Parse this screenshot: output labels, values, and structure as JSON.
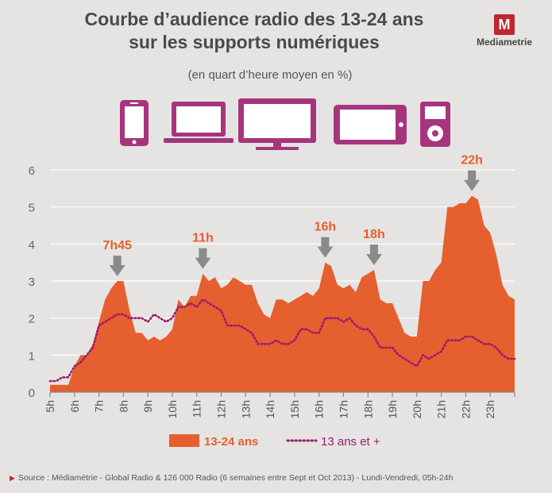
{
  "header": {
    "title_line1": "Courbe d’audience radio des 13-24 ans",
    "title_line2": "sur les supports numériques",
    "subtitle": "(en quart d’heure moyen en %)",
    "logo_text": "Mediametrie",
    "logo_letter": "M"
  },
  "devices": [
    "smartphone-icon",
    "laptop-icon",
    "tv-icon",
    "tablet-icon",
    "mp3-player-icon"
  ],
  "colors": {
    "primary": "#e55f2f",
    "secondary": "#9c1b6d",
    "device": "#a6357e",
    "arrow": "#8a8a8a",
    "accent": "#c0272d"
  },
  "source": "Source : Médiamétrie - Global Radio & 126 000 Radio (6 semaines entre Sept et Oct 2013) - Lundi-Vendredi, 05h-24h",
  "chart_data": {
    "type": "area",
    "ylim": [
      0,
      6
    ],
    "yticks": [
      0,
      1,
      2,
      3,
      4,
      5,
      6
    ],
    "xlim": [
      5,
      24
    ],
    "x_ticks": [
      "5h",
      "6h",
      "7h",
      "8h",
      "9h",
      "10h",
      "11h",
      "12h",
      "13h",
      "14h",
      "15h",
      "16h",
      "17h",
      "18h",
      "19h",
      "20h",
      "21h",
      "22h",
      "23h"
    ],
    "grid": true,
    "legend_position": "bottom",
    "series": [
      {
        "name": "13-24 ans",
        "style": "area",
        "points": [
          [
            5.0,
            0.2
          ],
          [
            5.25,
            0.2
          ],
          [
            5.5,
            0.2
          ],
          [
            5.75,
            0.2
          ],
          [
            6.0,
            0.7
          ],
          [
            6.25,
            1.0
          ],
          [
            6.5,
            1.0
          ],
          [
            6.75,
            1.3
          ],
          [
            7.0,
            1.9
          ],
          [
            7.25,
            2.5
          ],
          [
            7.5,
            2.8
          ],
          [
            7.75,
            3.0
          ],
          [
            8.0,
            3.0
          ],
          [
            8.25,
            2.2
          ],
          [
            8.5,
            1.6
          ],
          [
            8.75,
            1.6
          ],
          [
            9.0,
            1.4
          ],
          [
            9.25,
            1.5
          ],
          [
            9.5,
            1.4
          ],
          [
            9.75,
            1.5
          ],
          [
            10.0,
            1.7
          ],
          [
            10.25,
            2.5
          ],
          [
            10.5,
            2.3
          ],
          [
            10.75,
            2.6
          ],
          [
            11.0,
            2.6
          ],
          [
            11.25,
            3.2
          ],
          [
            11.5,
            3.0
          ],
          [
            11.75,
            3.1
          ],
          [
            12.0,
            2.8
          ],
          [
            12.25,
            2.9
          ],
          [
            12.5,
            3.1
          ],
          [
            12.75,
            3.0
          ],
          [
            13.0,
            2.9
          ],
          [
            13.25,
            2.9
          ],
          [
            13.5,
            2.4
          ],
          [
            13.75,
            2.1
          ],
          [
            14.0,
            2.0
          ],
          [
            14.25,
            2.5
          ],
          [
            14.5,
            2.5
          ],
          [
            14.75,
            2.4
          ],
          [
            15.0,
            2.5
          ],
          [
            15.25,
            2.6
          ],
          [
            15.5,
            2.7
          ],
          [
            15.75,
            2.6
          ],
          [
            16.0,
            2.8
          ],
          [
            16.25,
            3.5
          ],
          [
            16.5,
            3.4
          ],
          [
            16.75,
            2.9
          ],
          [
            17.0,
            2.8
          ],
          [
            17.25,
            2.9
          ],
          [
            17.5,
            2.7
          ],
          [
            17.75,
            3.1
          ],
          [
            18.0,
            3.2
          ],
          [
            18.25,
            3.3
          ],
          [
            18.5,
            2.5
          ],
          [
            18.75,
            2.4
          ],
          [
            19.0,
            2.4
          ],
          [
            19.25,
            2.0
          ],
          [
            19.5,
            1.6
          ],
          [
            19.75,
            1.5
          ],
          [
            20.0,
            1.5
          ],
          [
            20.25,
            3.0
          ],
          [
            20.5,
            3.0
          ],
          [
            20.75,
            3.3
          ],
          [
            21.0,
            3.5
          ],
          [
            21.25,
            5.0
          ],
          [
            21.5,
            5.0
          ],
          [
            21.75,
            5.1
          ],
          [
            22.0,
            5.1
          ],
          [
            22.25,
            5.3
          ],
          [
            22.5,
            5.2
          ],
          [
            22.75,
            4.5
          ],
          [
            23.0,
            4.3
          ],
          [
            23.25,
            3.7
          ],
          [
            23.5,
            2.9
          ],
          [
            23.75,
            2.6
          ],
          [
            24.0,
            2.5
          ]
        ]
      },
      {
        "name": "13 ans et +",
        "style": "dotted-line",
        "points": [
          [
            5.0,
            0.3
          ],
          [
            5.25,
            0.3
          ],
          [
            5.5,
            0.4
          ],
          [
            5.75,
            0.4
          ],
          [
            6.0,
            0.7
          ],
          [
            6.25,
            0.8
          ],
          [
            6.5,
            1.0
          ],
          [
            6.75,
            1.2
          ],
          [
            7.0,
            1.8
          ],
          [
            7.25,
            1.9
          ],
          [
            7.5,
            2.0
          ],
          [
            7.75,
            2.1
          ],
          [
            8.0,
            2.1
          ],
          [
            8.25,
            2.0
          ],
          [
            8.5,
            2.0
          ],
          [
            8.75,
            2.0
          ],
          [
            9.0,
            1.9
          ],
          [
            9.25,
            2.1
          ],
          [
            9.5,
            2.0
          ],
          [
            9.75,
            1.9
          ],
          [
            10.0,
            2.0
          ],
          [
            10.25,
            2.3
          ],
          [
            10.5,
            2.3
          ],
          [
            10.75,
            2.4
          ],
          [
            11.0,
            2.3
          ],
          [
            11.25,
            2.5
          ],
          [
            11.5,
            2.4
          ],
          [
            11.75,
            2.3
          ],
          [
            12.0,
            2.2
          ],
          [
            12.25,
            1.8
          ],
          [
            12.5,
            1.8
          ],
          [
            12.75,
            1.8
          ],
          [
            13.0,
            1.7
          ],
          [
            13.25,
            1.6
          ],
          [
            13.5,
            1.3
          ],
          [
            13.75,
            1.3
          ],
          [
            14.0,
            1.3
          ],
          [
            14.25,
            1.4
          ],
          [
            14.5,
            1.3
          ],
          [
            14.75,
            1.3
          ],
          [
            15.0,
            1.4
          ],
          [
            15.25,
            1.7
          ],
          [
            15.5,
            1.7
          ],
          [
            15.75,
            1.6
          ],
          [
            16.0,
            1.6
          ],
          [
            16.25,
            2.0
          ],
          [
            16.5,
            2.0
          ],
          [
            16.75,
            2.0
          ],
          [
            17.0,
            1.9
          ],
          [
            17.25,
            2.0
          ],
          [
            17.5,
            1.8
          ],
          [
            17.75,
            1.7
          ],
          [
            18.0,
            1.7
          ],
          [
            18.25,
            1.5
          ],
          [
            18.5,
            1.2
          ],
          [
            18.75,
            1.2
          ],
          [
            19.0,
            1.2
          ],
          [
            19.25,
            1.0
          ],
          [
            19.5,
            0.9
          ],
          [
            19.75,
            0.8
          ],
          [
            20.0,
            0.7
          ],
          [
            20.25,
            1.0
          ],
          [
            20.5,
            0.9
          ],
          [
            20.75,
            1.0
          ],
          [
            21.0,
            1.1
          ],
          [
            21.25,
            1.4
          ],
          [
            21.5,
            1.4
          ],
          [
            21.75,
            1.4
          ],
          [
            22.0,
            1.5
          ],
          [
            22.25,
            1.5
          ],
          [
            22.5,
            1.4
          ],
          [
            22.75,
            1.3
          ],
          [
            23.0,
            1.3
          ],
          [
            23.25,
            1.2
          ],
          [
            23.5,
            1.0
          ],
          [
            23.75,
            0.9
          ],
          [
            24.0,
            0.9
          ]
        ]
      }
    ],
    "annotations": [
      {
        "label": "7h45",
        "x": 7.75,
        "y": 3.0
      },
      {
        "label": "11h",
        "x": 11.25,
        "y": 3.2
      },
      {
        "label": "16h",
        "x": 16.25,
        "y": 3.5
      },
      {
        "label": "18h",
        "x": 18.25,
        "y": 3.3
      },
      {
        "label": "22h",
        "x": 22.25,
        "y": 5.3
      }
    ]
  }
}
